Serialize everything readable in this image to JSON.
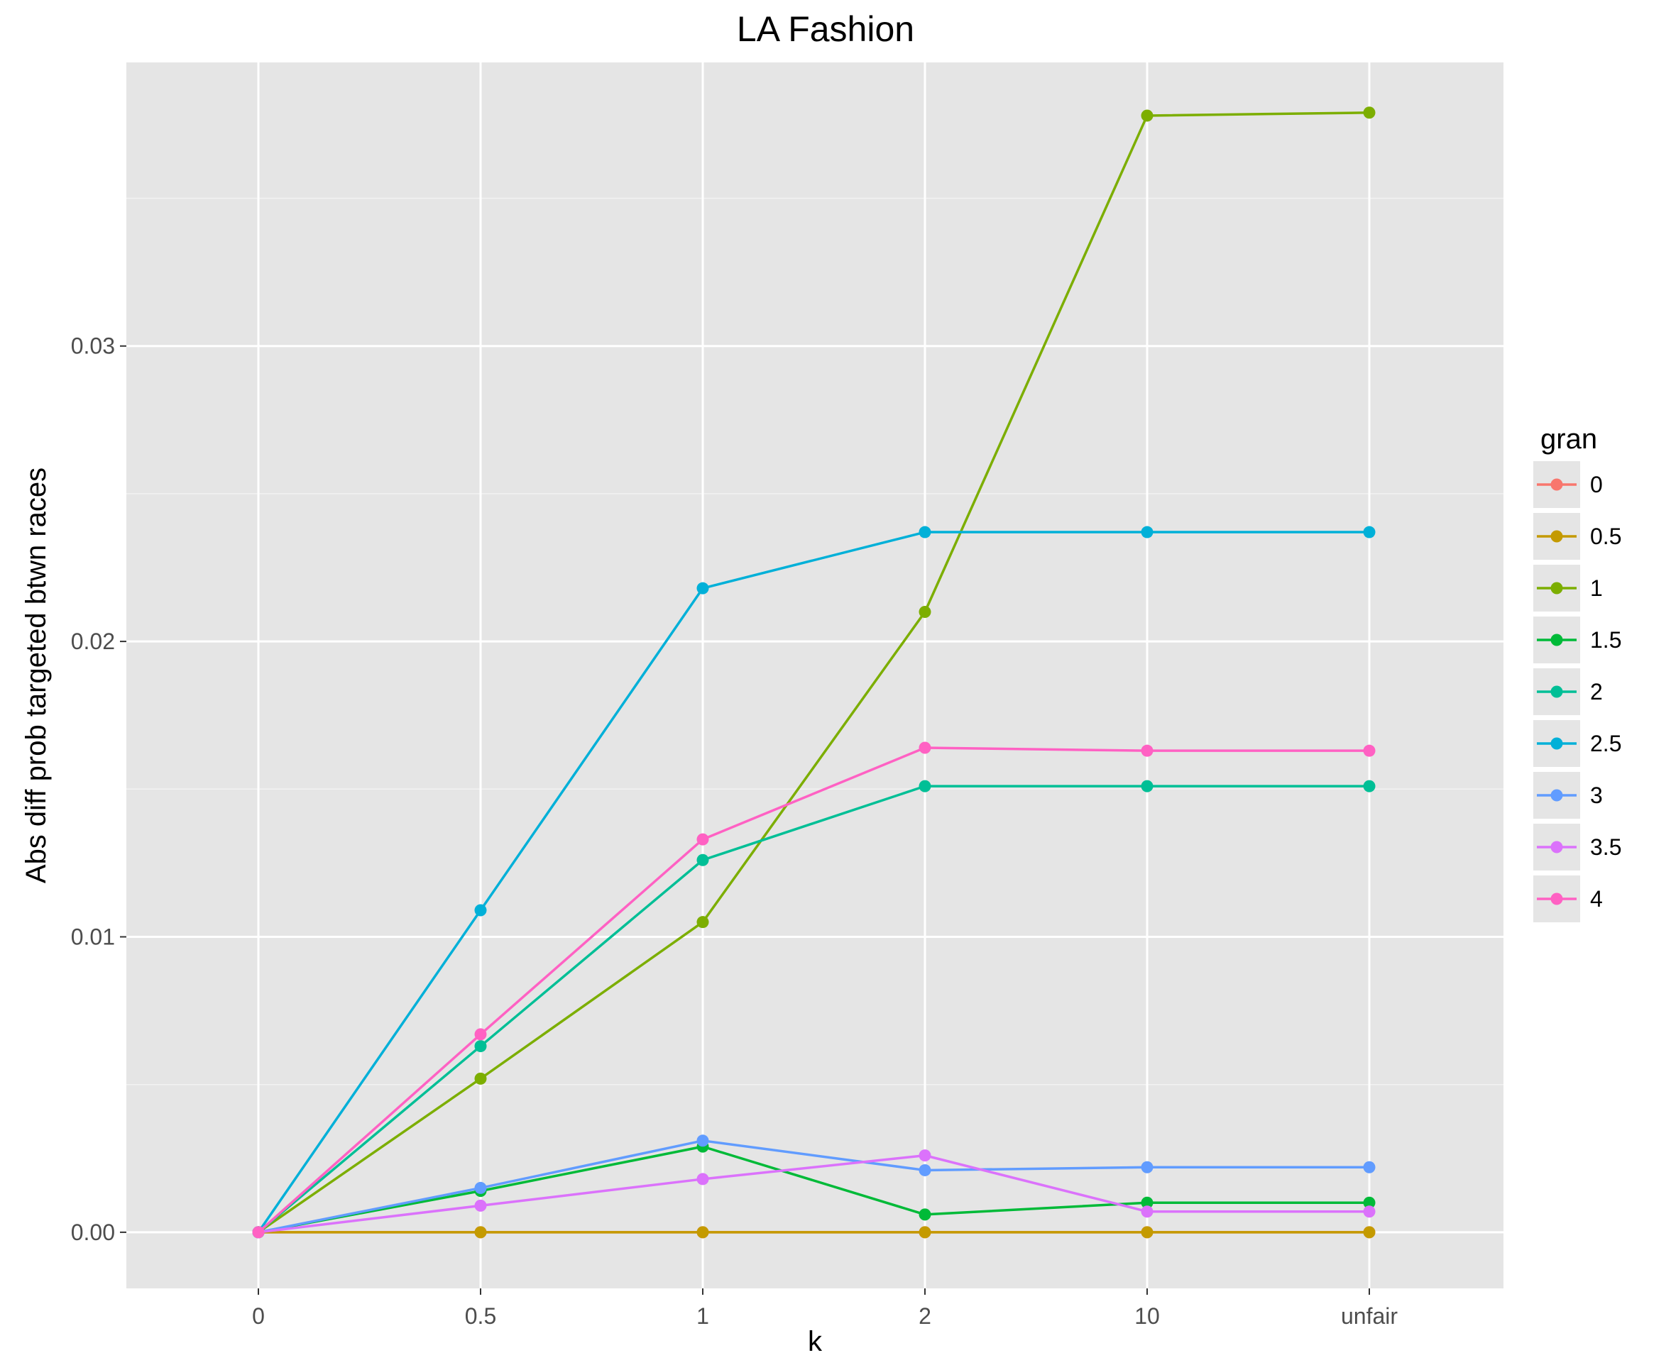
{
  "chart_data": {
    "type": "line",
    "title": "LA Fashion",
    "xlabel": "k",
    "ylabel": "Abs diff prob targeted btwn races",
    "categories": [
      "0",
      "0.5",
      "1",
      "2",
      "10",
      "unfair"
    ],
    "yticks": [
      "0.00",
      "0.01",
      "0.02",
      "0.03"
    ],
    "ylim": [
      -0.0019,
      0.0396
    ],
    "grid": true,
    "legend": {
      "title": "gran",
      "position": "right"
    },
    "series": [
      {
        "name": "0",
        "color": "#F8766D",
        "values": [
          0,
          0,
          0,
          0,
          0,
          0
        ]
      },
      {
        "name": "0.5",
        "color": "#C49A00",
        "values": [
          0,
          0,
          0,
          0,
          0,
          0
        ]
      },
      {
        "name": "1",
        "color": "#7CAE00",
        "values": [
          0,
          0.0052,
          0.0105,
          0.021,
          0.0378,
          0.0379
        ]
      },
      {
        "name": "1.5",
        "color": "#00BA38",
        "values": [
          0,
          0.0014,
          0.0029,
          0.0006,
          0.001,
          0.001
        ]
      },
      {
        "name": "2",
        "color": "#00BF96",
        "values": [
          0,
          0.0063,
          0.0126,
          0.0151,
          0.0151,
          0.0151
        ]
      },
      {
        "name": "2.5",
        "color": "#00B0D8",
        "values": [
          0,
          0.0109,
          0.0218,
          0.0237,
          0.0237,
          0.0237
        ]
      },
      {
        "name": "3",
        "color": "#619CFF",
        "values": [
          0,
          0.0015,
          0.0031,
          0.0021,
          0.0022,
          0.0022
        ]
      },
      {
        "name": "3.5",
        "color": "#DB72FB",
        "values": [
          0,
          0.0009,
          0.0018,
          0.0026,
          0.0007,
          0.0007
        ]
      },
      {
        "name": "4",
        "color": "#FF61C3",
        "values": [
          0,
          0.0067,
          0.0133,
          0.0164,
          0.0163,
          0.0163
        ]
      }
    ]
  }
}
